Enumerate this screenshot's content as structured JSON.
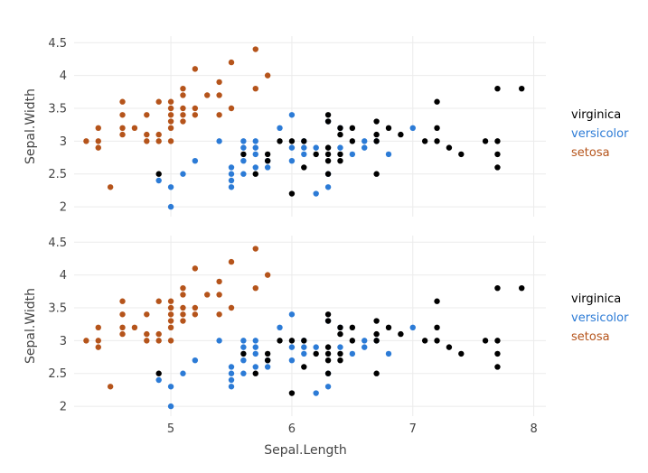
{
  "chart_data": [
    {
      "type": "scatter",
      "xlabel": "",
      "ylabel": "Sepal.Width",
      "xlim": [
        4.2,
        8.1
      ],
      "ylim": [
        1.85,
        4.6
      ],
      "xticks": [
        5,
        6,
        7,
        8
      ],
      "yticks": [
        2,
        2.5,
        3,
        3.5,
        4,
        4.5
      ],
      "show_xtick_labels": false,
      "grid": true,
      "legend": "right",
      "series": [
        {
          "name": "virginica",
          "color": "#000000",
          "points": [
            [
              4.9,
              2.5
            ],
            [
              5.6,
              2.8
            ],
            [
              5.7,
              2.5
            ],
            [
              5.8,
              2.7
            ],
            [
              5.8,
              2.8
            ],
            [
              5.9,
              3.0
            ],
            [
              6.0,
              2.2
            ],
            [
              6.0,
              3.0
            ],
            [
              6.1,
              2.6
            ],
            [
              6.1,
              3.0
            ],
            [
              6.2,
              2.8
            ],
            [
              6.3,
              2.5
            ],
            [
              6.3,
              2.7
            ],
            [
              6.3,
              2.8
            ],
            [
              6.3,
              2.9
            ],
            [
              6.3,
              3.3
            ],
            [
              6.3,
              3.4
            ],
            [
              6.4,
              2.7
            ],
            [
              6.4,
              2.8
            ],
            [
              6.4,
              3.1
            ],
            [
              6.4,
              3.2
            ],
            [
              6.5,
              3.0
            ],
            [
              6.5,
              3.2
            ],
            [
              6.7,
              2.5
            ],
            [
              6.7,
              3.0
            ],
            [
              6.7,
              3.1
            ],
            [
              6.7,
              3.3
            ],
            [
              6.8,
              3.2
            ],
            [
              6.9,
              3.1
            ],
            [
              7.1,
              3.0
            ],
            [
              7.2,
              3.0
            ],
            [
              7.2,
              3.2
            ],
            [
              7.2,
              3.6
            ],
            [
              7.3,
              2.9
            ],
            [
              7.4,
              2.8
            ],
            [
              7.6,
              3.0
            ],
            [
              7.7,
              2.6
            ],
            [
              7.7,
              2.8
            ],
            [
              7.7,
              3.0
            ],
            [
              7.7,
              3.8
            ],
            [
              7.9,
              3.8
            ]
          ]
        },
        {
          "name": "versicolor",
          "color": "#2c7bd6",
          "points": [
            [
              4.9,
              2.4
            ],
            [
              5.0,
              2.0
            ],
            [
              5.0,
              2.3
            ],
            [
              5.1,
              2.5
            ],
            [
              5.2,
              2.7
            ],
            [
              5.4,
              3.0
            ],
            [
              5.5,
              2.3
            ],
            [
              5.5,
              2.4
            ],
            [
              5.5,
              2.5
            ],
            [
              5.5,
              2.6
            ],
            [
              5.6,
              2.5
            ],
            [
              5.6,
              2.7
            ],
            [
              5.6,
              2.9
            ],
            [
              5.6,
              3.0
            ],
            [
              5.7,
              2.6
            ],
            [
              5.7,
              2.8
            ],
            [
              5.7,
              2.9
            ],
            [
              5.7,
              3.0
            ],
            [
              5.8,
              2.6
            ],
            [
              5.8,
              2.7
            ],
            [
              5.9,
              3.2
            ],
            [
              6.0,
              2.7
            ],
            [
              6.0,
              2.9
            ],
            [
              6.0,
              3.4
            ],
            [
              6.1,
              2.8
            ],
            [
              6.1,
              2.9
            ],
            [
              6.1,
              3.0
            ],
            [
              6.2,
              2.2
            ],
            [
              6.2,
              2.9
            ],
            [
              6.3,
              2.3
            ],
            [
              6.3,
              2.5
            ],
            [
              6.3,
              3.3
            ],
            [
              6.4,
              2.9
            ],
            [
              6.4,
              3.2
            ],
            [
              6.5,
              2.8
            ],
            [
              6.6,
              2.9
            ],
            [
              6.6,
              3.0
            ],
            [
              6.7,
              3.0
            ],
            [
              6.8,
              2.8
            ],
            [
              7.0,
              3.2
            ]
          ]
        },
        {
          "name": "setosa",
          "color": "#b5541b",
          "points": [
            [
              4.3,
              3.0
            ],
            [
              4.4,
              2.9
            ],
            [
              4.4,
              3.0
            ],
            [
              4.4,
              3.2
            ],
            [
              4.5,
              2.3
            ],
            [
              4.6,
              3.1
            ],
            [
              4.6,
              3.2
            ],
            [
              4.6,
              3.4
            ],
            [
              4.6,
              3.6
            ],
            [
              4.7,
              3.2
            ],
            [
              4.8,
              3.0
            ],
            [
              4.8,
              3.1
            ],
            [
              4.8,
              3.4
            ],
            [
              4.9,
              3.0
            ],
            [
              4.9,
              3.1
            ],
            [
              4.9,
              3.6
            ],
            [
              5.0,
              3.0
            ],
            [
              5.0,
              3.2
            ],
            [
              5.0,
              3.3
            ],
            [
              5.0,
              3.4
            ],
            [
              5.0,
              3.5
            ],
            [
              5.0,
              3.6
            ],
            [
              5.1,
              3.3
            ],
            [
              5.1,
              3.4
            ],
            [
              5.1,
              3.5
            ],
            [
              5.1,
              3.7
            ],
            [
              5.1,
              3.8
            ],
            [
              5.2,
              3.4
            ],
            [
              5.2,
              3.5
            ],
            [
              5.2,
              4.1
            ],
            [
              5.3,
              3.7
            ],
            [
              5.4,
              3.4
            ],
            [
              5.4,
              3.7
            ],
            [
              5.4,
              3.9
            ],
            [
              5.5,
              3.5
            ],
            [
              5.5,
              4.2
            ],
            [
              5.7,
              3.8
            ],
            [
              5.7,
              4.4
            ],
            [
              5.8,
              4.0
            ]
          ]
        }
      ]
    },
    {
      "type": "scatter",
      "xlabel": "Sepal.Length",
      "ylabel": "Sepal.Width",
      "xlim": [
        4.2,
        8.1
      ],
      "ylim": [
        1.85,
        4.6
      ],
      "xticks": [
        5,
        6,
        7,
        8
      ],
      "yticks": [
        2,
        2.5,
        3,
        3.5,
        4,
        4.5
      ],
      "show_xtick_labels": true,
      "grid": true,
      "legend": "right",
      "series": [
        {
          "name": "virginica",
          "color": "#000000",
          "points": [
            [
              4.9,
              2.5
            ],
            [
              5.6,
              2.8
            ],
            [
              5.7,
              2.5
            ],
            [
              5.8,
              2.7
            ],
            [
              5.8,
              2.8
            ],
            [
              5.9,
              3.0
            ],
            [
              6.0,
              2.2
            ],
            [
              6.0,
              3.0
            ],
            [
              6.1,
              2.6
            ],
            [
              6.1,
              3.0
            ],
            [
              6.2,
              2.8
            ],
            [
              6.3,
              2.5
            ],
            [
              6.3,
              2.7
            ],
            [
              6.3,
              2.8
            ],
            [
              6.3,
              2.9
            ],
            [
              6.3,
              3.3
            ],
            [
              6.3,
              3.4
            ],
            [
              6.4,
              2.7
            ],
            [
              6.4,
              2.8
            ],
            [
              6.4,
              3.1
            ],
            [
              6.4,
              3.2
            ],
            [
              6.5,
              3.0
            ],
            [
              6.5,
              3.2
            ],
            [
              6.7,
              2.5
            ],
            [
              6.7,
              3.0
            ],
            [
              6.7,
              3.1
            ],
            [
              6.7,
              3.3
            ],
            [
              6.8,
              3.2
            ],
            [
              6.9,
              3.1
            ],
            [
              7.1,
              3.0
            ],
            [
              7.2,
              3.0
            ],
            [
              7.2,
              3.2
            ],
            [
              7.2,
              3.6
            ],
            [
              7.3,
              2.9
            ],
            [
              7.4,
              2.8
            ],
            [
              7.6,
              3.0
            ],
            [
              7.7,
              2.6
            ],
            [
              7.7,
              2.8
            ],
            [
              7.7,
              3.0
            ],
            [
              7.7,
              3.8
            ],
            [
              7.9,
              3.8
            ]
          ]
        },
        {
          "name": "versicolor",
          "color": "#2c7bd6",
          "points": [
            [
              4.9,
              2.4
            ],
            [
              5.0,
              2.0
            ],
            [
              5.0,
              2.3
            ],
            [
              5.1,
              2.5
            ],
            [
              5.2,
              2.7
            ],
            [
              5.4,
              3.0
            ],
            [
              5.5,
              2.3
            ],
            [
              5.5,
              2.4
            ],
            [
              5.5,
              2.5
            ],
            [
              5.5,
              2.6
            ],
            [
              5.6,
              2.5
            ],
            [
              5.6,
              2.7
            ],
            [
              5.6,
              2.9
            ],
            [
              5.6,
              3.0
            ],
            [
              5.7,
              2.6
            ],
            [
              5.7,
              2.8
            ],
            [
              5.7,
              2.9
            ],
            [
              5.7,
              3.0
            ],
            [
              5.8,
              2.6
            ],
            [
              5.8,
              2.7
            ],
            [
              5.9,
              3.2
            ],
            [
              6.0,
              2.7
            ],
            [
              6.0,
              2.9
            ],
            [
              6.0,
              3.4
            ],
            [
              6.1,
              2.8
            ],
            [
              6.1,
              2.9
            ],
            [
              6.1,
              3.0
            ],
            [
              6.2,
              2.2
            ],
            [
              6.2,
              2.9
            ],
            [
              6.3,
              2.3
            ],
            [
              6.3,
              2.5
            ],
            [
              6.3,
              3.3
            ],
            [
              6.4,
              2.9
            ],
            [
              6.4,
              3.2
            ],
            [
              6.5,
              2.8
            ],
            [
              6.6,
              2.9
            ],
            [
              6.6,
              3.0
            ],
            [
              6.7,
              3.0
            ],
            [
              6.8,
              2.8
            ],
            [
              7.0,
              3.2
            ]
          ]
        },
        {
          "name": "setosa",
          "color": "#b5541b",
          "points": [
            [
              4.3,
              3.0
            ],
            [
              4.4,
              2.9
            ],
            [
              4.4,
              3.0
            ],
            [
              4.4,
              3.2
            ],
            [
              4.5,
              2.3
            ],
            [
              4.6,
              3.1
            ],
            [
              4.6,
              3.2
            ],
            [
              4.6,
              3.4
            ],
            [
              4.6,
              3.6
            ],
            [
              4.7,
              3.2
            ],
            [
              4.8,
              3.0
            ],
            [
              4.8,
              3.1
            ],
            [
              4.8,
              3.4
            ],
            [
              4.9,
              3.0
            ],
            [
              4.9,
              3.1
            ],
            [
              4.9,
              3.6
            ],
            [
              5.0,
              3.0
            ],
            [
              5.0,
              3.2
            ],
            [
              5.0,
              3.3
            ],
            [
              5.0,
              3.4
            ],
            [
              5.0,
              3.5
            ],
            [
              5.0,
              3.6
            ],
            [
              5.1,
              3.3
            ],
            [
              5.1,
              3.4
            ],
            [
              5.1,
              3.5
            ],
            [
              5.1,
              3.7
            ],
            [
              5.1,
              3.8
            ],
            [
              5.2,
              3.4
            ],
            [
              5.2,
              3.5
            ],
            [
              5.2,
              4.1
            ],
            [
              5.3,
              3.7
            ],
            [
              5.4,
              3.4
            ],
            [
              5.4,
              3.7
            ],
            [
              5.4,
              3.9
            ],
            [
              5.5,
              3.5
            ],
            [
              5.5,
              4.2
            ],
            [
              5.7,
              3.8
            ],
            [
              5.7,
              4.4
            ],
            [
              5.8,
              4.0
            ]
          ]
        }
      ]
    }
  ]
}
